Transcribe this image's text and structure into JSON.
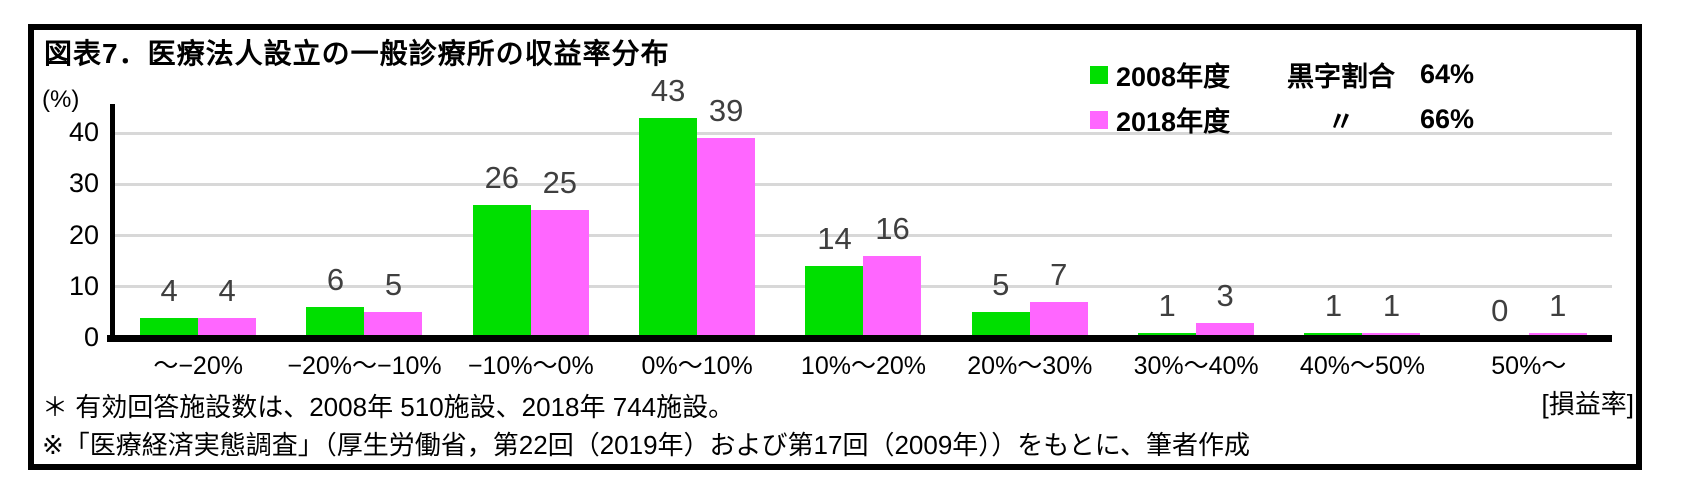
{
  "title": "図表7．医療法人設立の一般診療所の収益率分布",
  "legend": {
    "surplus_label": "黒字割合",
    "ditto_mark": "〃",
    "entries": [
      {
        "name": "2008年度",
        "surplus": "64%"
      },
      {
        "name": "2018年度",
        "surplus": "66%"
      }
    ]
  },
  "chart_data": {
    "type": "bar",
    "title": "図表7．医療法人設立の一般診療所の収益率分布",
    "y_unit": "(%)",
    "x_axis_note": "[損益率]",
    "categories": [
      "～−20%",
      "−20%～−10%",
      "−10%～0%",
      "0%～10%",
      "10%～20%",
      "20%～30%",
      "30%～40%",
      "40%～50%",
      "50%～"
    ],
    "series": [
      {
        "name": "2008年度",
        "color": "#00DF00",
        "values": [
          4,
          6,
          26,
          43,
          14,
          5,
          1,
          1,
          0
        ]
      },
      {
        "name": "2018年度",
        "color": "#FF66FF",
        "values": [
          4,
          5,
          25,
          39,
          16,
          7,
          3,
          1,
          1
        ]
      }
    ],
    "yticks": [
      0,
      10,
      20,
      30,
      40
    ],
    "ylim": [
      0,
      48.6
    ],
    "grid": true,
    "gridline_color": "#D8D8D8",
    "data_label_color": "#3F3F3F",
    "legend_position": "top-right"
  },
  "footnotes": [
    "＊ 有効回答施設数は、2008年 510施設、2018年 744施設。",
    "※「医療経済実態調査」（厚生労働省，第22回（2019年）および第17回（2009年））をもとに、筆者作成"
  ]
}
